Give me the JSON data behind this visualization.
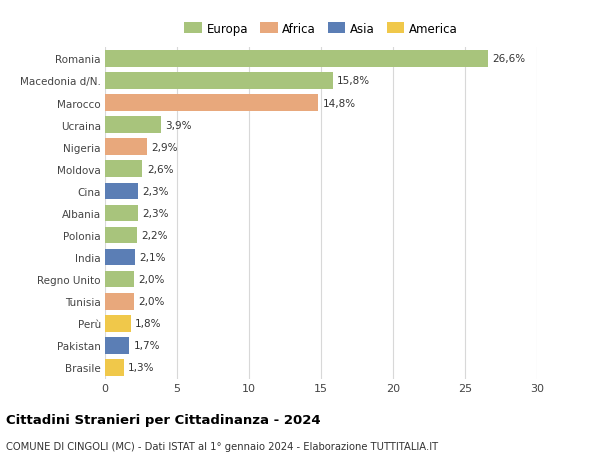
{
  "countries": [
    "Romania",
    "Macedonia d/N.",
    "Marocco",
    "Ucraina",
    "Nigeria",
    "Moldova",
    "Cina",
    "Albania",
    "Polonia",
    "India",
    "Regno Unito",
    "Tunisia",
    "Perù",
    "Pakistan",
    "Brasile"
  ],
  "values": [
    26.6,
    15.8,
    14.8,
    3.9,
    2.9,
    2.6,
    2.3,
    2.3,
    2.2,
    2.1,
    2.0,
    2.0,
    1.8,
    1.7,
    1.3
  ],
  "labels": [
    "26,6%",
    "15,8%",
    "14,8%",
    "3,9%",
    "2,9%",
    "2,6%",
    "2,3%",
    "2,3%",
    "2,2%",
    "2,1%",
    "2,0%",
    "2,0%",
    "1,8%",
    "1,7%",
    "1,3%"
  ],
  "continents": [
    "Europa",
    "Europa",
    "Africa",
    "Europa",
    "Africa",
    "Europa",
    "Asia",
    "Europa",
    "Europa",
    "Asia",
    "Europa",
    "Africa",
    "America",
    "Asia",
    "America"
  ],
  "colors": {
    "Europa": "#a8c47c",
    "Africa": "#e8a87c",
    "Asia": "#5b7eb5",
    "America": "#f0c84a"
  },
  "legend_order": [
    "Europa",
    "Africa",
    "Asia",
    "America"
  ],
  "xlim": [
    0,
    30
  ],
  "xticks": [
    0,
    5,
    10,
    15,
    20,
    25,
    30
  ],
  "title": "Cittadini Stranieri per Cittadinanza - 2024",
  "subtitle": "COMUNE DI CINGOLI (MC) - Dati ISTAT al 1° gennaio 2024 - Elaborazione TUTTITALIA.IT",
  "background_color": "#ffffff",
  "grid_color": "#d8d8d8",
  "bar_height": 0.75
}
